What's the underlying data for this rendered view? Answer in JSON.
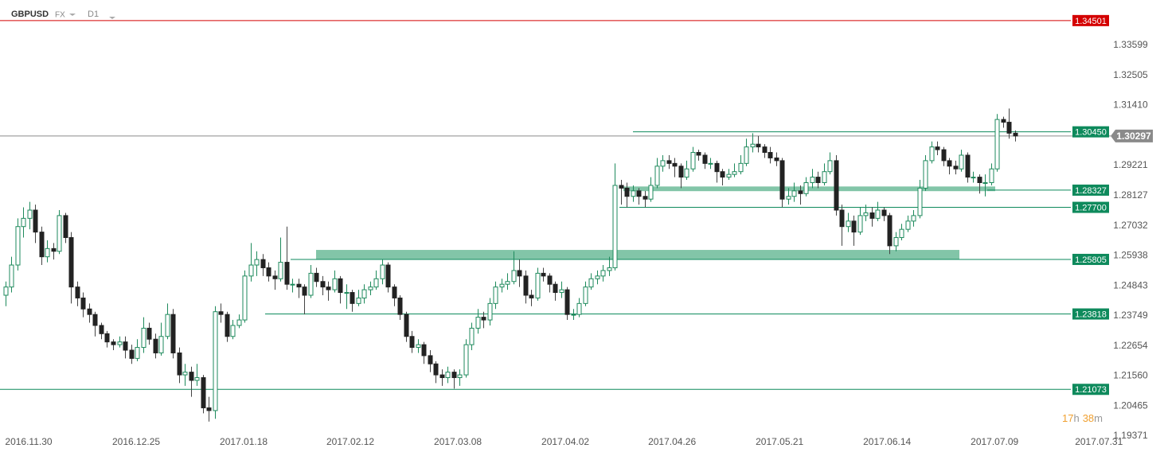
{
  "header": {
    "symbol": "GBPUSD",
    "market": "FX",
    "timeframe": "D1",
    "countdown": [
      "17",
      "h",
      "38",
      "m"
    ]
  },
  "chart_data": {
    "type": "candlestick",
    "up_color": "#ffffff",
    "up_border": "#1e8a5c",
    "down_color": "#222222",
    "wick_color": "#444444",
    "xlim": [
      -0.93,
      193.97
    ],
    "ylim": [
      1.19371,
      1.3525
    ],
    "yticks": [
      1.33599,
      1.32505,
      {
        "value": 1.3141,
        "label": "1.31410"
      },
      1.29221,
      1.28127,
      1.27032,
      1.25938,
      1.24843,
      1.23749,
      1.22654,
      {
        "value": 1.2156,
        "label": "1.21560"
      },
      1.20465,
      1.19371
    ],
    "xticks": [
      {
        "value": 3.87,
        "label": "2016.11.30"
      },
      {
        "value": 21.87,
        "label": "2016.12.25"
      },
      {
        "value": 39.87,
        "label": "2017.01.18"
      },
      {
        "value": 57.73,
        "label": "2017.02.12"
      },
      {
        "value": 75.73,
        "label": "2017.03.08"
      },
      {
        "value": 93.73,
        "label": "2017.04.02"
      },
      {
        "value": 111.6,
        "label": "2017.04.26"
      },
      {
        "value": 129.6,
        "label": "2017.05.21"
      },
      {
        "value": 147.6,
        "label": "2017.06.14"
      },
      {
        "value": 165.6,
        "label": "2017.07.09"
      },
      {
        "value": 183.07,
        "label": "2017.07.31"
      }
    ],
    "levels": [
      {
        "price": 1.34501,
        "color": "#d40000"
      },
      {
        "price": {
          "value": 1.3045,
          "label": "1.30450"
        },
        "color": "#0e8a5c"
      },
      {
        "price": 1.28327,
        "color": "#0e8a5c"
      },
      {
        "price": {
          "value": 1.277,
          "label": "1.27700"
        },
        "color": "#0e8a5c"
      },
      {
        "price": 1.25805,
        "color": "#0e8a5c"
      },
      {
        "price": 1.23818,
        "color": "#0e8a5c"
      },
      {
        "price": 1.21073,
        "color": "#0e8a5c"
      }
    ],
    "current_price": {
      "price": 1.30297,
      "color": "#8a8a8a"
    },
    "zones": [
      {
        "from": 1.2829,
        "to": 1.2846,
        "color": "#2e9e6e"
      },
      {
        "from": 1.258,
        "to": 1.2615,
        "color": "#2e9e6e"
      }
    ],
    "ohlc": [
      [
        1.245,
        1.25,
        1.241,
        1.248
      ],
      [
        1.248,
        1.259,
        1.246,
        1.256
      ],
      [
        1.256,
        1.273,
        1.254,
        1.27
      ],
      [
        1.27,
        1.277,
        1.266,
        1.273
      ],
      [
        1.273,
        1.279,
        1.269,
        1.276
      ],
      [
        1.276,
        1.278,
        1.264,
        1.268
      ],
      [
        1.268,
        1.27,
        1.256,
        1.259
      ],
      [
        1.259,
        1.265,
        1.257,
        1.262
      ],
      [
        1.262,
        1.264,
        1.258,
        1.261
      ],
      [
        1.261,
        1.276,
        1.26,
        1.274
      ],
      [
        1.274,
        1.275,
        1.264,
        1.266
      ],
      [
        1.266,
        1.268,
        1.242,
        1.248
      ],
      [
        1.248,
        1.25,
        1.241,
        1.244
      ],
      [
        1.244,
        1.246,
        1.237,
        1.24
      ],
      [
        1.24,
        1.242,
        1.235,
        1.238
      ],
      [
        1.238,
        1.239,
        1.23,
        1.234
      ],
      [
        1.234,
        1.235,
        1.229,
        1.231
      ],
      [
        1.231,
        1.232,
        1.226,
        1.228
      ],
      [
        1.228,
        1.229,
        1.225,
        1.227
      ],
      [
        1.227,
        1.23,
        1.226,
        1.228
      ],
      [
        1.228,
        1.23,
        1.222,
        1.225
      ],
      [
        1.225,
        1.227,
        1.22,
        1.222
      ],
      [
        1.222,
        1.229,
        1.221,
        1.226
      ],
      [
        1.226,
        1.237,
        1.224,
        1.233
      ],
      [
        1.233,
        1.235,
        1.227,
        1.229
      ],
      [
        1.229,
        1.231,
        1.222,
        1.224
      ],
      [
        1.224,
        1.235,
        1.223,
        1.23
      ],
      [
        1.23,
        1.242,
        1.229,
        1.238
      ],
      [
        1.238,
        1.24,
        1.222,
        1.224
      ],
      [
        1.224,
        1.226,
        1.213,
        1.216
      ],
      [
        1.216,
        1.22,
        1.212,
        1.217
      ],
      [
        1.217,
        1.219,
        1.208,
        1.214
      ],
      [
        1.214,
        1.22,
        1.212,
        1.215
      ],
      [
        1.215,
        1.216,
        1.202,
        1.204
      ],
      [
        1.204,
        1.208,
        1.199,
        1.203
      ],
      [
        1.203,
        1.241,
        1.2,
        1.239
      ],
      [
        1.239,
        1.242,
        1.235,
        1.238
      ],
      [
        1.238,
        1.239,
        1.228,
        1.23
      ],
      [
        1.23,
        1.236,
        1.229,
        1.234
      ],
      [
        1.234,
        1.238,
        1.233,
        1.236
      ],
      [
        1.236,
        1.254,
        1.235,
        1.252
      ],
      [
        1.252,
        1.264,
        1.25,
        1.256
      ],
      [
        1.256,
        1.261,
        1.252,
        1.258
      ],
      [
        1.258,
        1.26,
        1.252,
        1.255
      ],
      [
        1.255,
        1.257,
        1.25,
        1.252
      ],
      [
        1.252,
        1.254,
        1.247,
        1.251
      ],
      [
        1.251,
        1.266,
        1.25,
        1.257
      ],
      [
        1.257,
        1.27,
        1.247,
        1.249
      ],
      [
        1.249,
        1.251,
        1.246,
        1.249
      ],
      [
        1.249,
        1.251,
        1.244,
        1.248
      ],
      [
        1.248,
        1.249,
        1.238,
        1.245
      ],
      [
        1.245,
        1.256,
        1.244,
        1.253
      ],
      [
        1.253,
        1.255,
        1.248,
        1.25
      ],
      [
        1.25,
        1.252,
        1.245,
        1.248
      ],
      [
        1.248,
        1.25,
        1.243,
        1.247
      ],
      [
        1.247,
        1.254,
        1.246,
        1.251
      ],
      [
        1.251,
        1.252,
        1.242,
        1.246
      ],
      [
        1.246,
        1.249,
        1.24,
        1.246
      ],
      [
        1.246,
        1.247,
        1.239,
        1.242
      ],
      [
        1.242,
        1.247,
        1.241,
        1.244
      ],
      [
        1.244,
        1.249,
        1.242,
        1.247
      ],
      [
        1.247,
        1.25,
        1.245,
        1.248
      ],
      [
        1.248,
        1.254,
        1.247,
        1.251
      ],
      [
        1.251,
        1.258,
        1.249,
        1.256
      ],
      [
        1.256,
        1.257,
        1.246,
        1.248
      ],
      [
        1.248,
        1.249,
        1.241,
        1.244
      ],
      [
        1.244,
        1.245,
        1.236,
        1.238
      ],
      [
        1.238,
        1.239,
        1.228,
        1.23
      ],
      [
        1.23,
        1.232,
        1.224,
        1.226
      ],
      [
        1.226,
        1.229,
        1.224,
        1.227
      ],
      [
        1.227,
        1.228,
        1.22,
        1.223
      ],
      [
        1.223,
        1.225,
        1.217,
        1.22
      ],
      [
        1.22,
        1.221,
        1.213,
        1.216
      ],
      [
        1.216,
        1.218,
        1.212,
        1.215
      ],
      [
        1.215,
        1.219,
        1.213,
        1.217
      ],
      [
        1.217,
        1.218,
        1.211,
        1.215
      ],
      [
        1.215,
        1.218,
        1.212,
        1.216
      ],
      [
        1.216,
        1.229,
        1.215,
        1.227
      ],
      [
        1.227,
        1.235,
        1.225,
        1.233
      ],
      [
        1.233,
        1.24,
        1.231,
        1.237
      ],
      [
        1.237,
        1.239,
        1.233,
        1.236
      ],
      [
        1.236,
        1.244,
        1.234,
        1.242
      ],
      [
        1.242,
        1.25,
        1.24,
        1.248
      ],
      [
        1.248,
        1.251,
        1.246,
        1.249
      ],
      [
        1.249,
        1.253,
        1.247,
        1.25
      ],
      [
        1.25,
        1.261,
        1.249,
        1.254
      ],
      [
        1.254,
        1.258,
        1.248,
        1.252
      ],
      [
        1.252,
        1.254,
        1.242,
        1.245
      ],
      [
        1.245,
        1.247,
        1.241,
        1.244
      ],
      [
        1.244,
        1.255,
        1.243,
        1.253
      ],
      [
        1.253,
        1.255,
        1.25,
        1.252
      ],
      [
        1.252,
        1.253,
        1.246,
        1.249
      ],
      [
        1.249,
        1.25,
        1.243,
        1.246
      ],
      [
        1.246,
        1.25,
        1.244,
        1.247
      ],
      [
        1.247,
        1.248,
        1.236,
        1.238
      ],
      [
        1.238,
        1.24,
        1.236,
        1.238
      ],
      [
        1.238,
        1.244,
        1.237,
        1.242
      ],
      [
        1.242,
        1.25,
        1.241,
        1.248
      ],
      [
        1.248,
        1.253,
        1.247,
        1.251
      ],
      [
        1.251,
        1.254,
        1.249,
        1.252
      ],
      [
        1.252,
        1.256,
        1.25,
        1.254
      ],
      [
        1.254,
        1.259,
        1.252,
        1.255
      ],
      [
        1.255,
        1.293,
        1.254,
        1.285
      ],
      [
        1.285,
        1.287,
        1.278,
        1.284
      ],
      [
        1.284,
        1.286,
        1.277,
        1.281
      ],
      [
        1.281,
        1.285,
        1.279,
        1.283
      ],
      [
        1.283,
        1.284,
        1.278,
        1.281
      ],
      [
        1.281,
        1.283,
        1.277,
        1.28
      ],
      [
        1.28,
        1.288,
        1.279,
        1.285
      ],
      [
        1.285,
        1.295,
        1.284,
        1.292
      ],
      [
        1.292,
        1.296,
        1.29,
        1.294
      ],
      [
        1.294,
        1.296,
        1.291,
        1.293
      ],
      [
        1.293,
        1.295,
        1.288,
        1.292
      ],
      [
        1.292,
        1.293,
        1.284,
        1.288
      ],
      [
        1.288,
        1.294,
        1.287,
        1.291
      ],
      [
        1.291,
        1.299,
        1.29,
        1.297
      ],
      [
        1.297,
        1.298,
        1.294,
        1.296
      ],
      [
        1.296,
        1.297,
        1.291,
        1.293
      ],
      [
        1.293,
        1.295,
        1.291,
        1.293
      ],
      [
        1.293,
        1.294,
        1.286,
        1.29
      ],
      [
        1.29,
        1.291,
        1.285,
        1.288
      ],
      [
        1.288,
        1.291,
        1.287,
        1.289
      ],
      [
        1.289,
        1.293,
        1.288,
        1.29
      ],
      [
        1.29,
        1.296,
        1.289,
        1.293
      ],
      [
        1.293,
        1.302,
        1.292,
        1.299
      ],
      [
        1.299,
        1.304,
        1.297,
        1.3
      ],
      [
        1.3,
        1.303,
        1.297,
        1.299
      ],
      [
        1.299,
        1.3,
        1.295,
        1.297
      ],
      [
        1.297,
        1.299,
        1.293,
        1.295
      ],
      [
        1.295,
        1.297,
        1.292,
        1.294
      ],
      [
        1.294,
        1.295,
        1.277,
        1.28
      ],
      [
        1.28,
        1.284,
        1.278,
        1.281
      ],
      [
        1.281,
        1.286,
        1.279,
        1.283
      ],
      [
        1.283,
        1.285,
        1.278,
        1.282
      ],
      [
        1.282,
        1.288,
        1.281,
        1.286
      ],
      [
        1.286,
        1.291,
        1.284,
        1.288
      ],
      [
        1.288,
        1.29,
        1.284,
        1.286
      ],
      [
        1.286,
        1.293,
        1.285,
        1.29
      ],
      [
        1.29,
        1.297,
        1.289,
        1.294
      ],
      [
        1.294,
        1.296,
        1.274,
        1.276
      ],
      [
        1.276,
        1.278,
        1.263,
        1.27
      ],
      [
        1.27,
        1.275,
        1.268,
        1.272
      ],
      [
        1.272,
        1.274,
        1.263,
        1.268
      ],
      [
        1.268,
        1.277,
        1.267,
        1.274
      ],
      [
        1.274,
        1.278,
        1.272,
        1.275
      ],
      [
        1.275,
        1.277,
        1.27,
        1.273
      ],
      [
        1.273,
        1.279,
        1.272,
        1.276
      ],
      [
        1.276,
        1.277,
        1.272,
        1.274
      ],
      [
        1.274,
        1.275,
        1.26,
        1.263
      ],
      [
        1.263,
        1.268,
        1.261,
        1.266
      ],
      [
        1.266,
        1.271,
        1.265,
        1.269
      ],
      [
        1.269,
        1.274,
        1.268,
        1.272
      ],
      [
        1.272,
        1.276,
        1.27,
        1.274
      ],
      [
        1.274,
        1.287,
        1.273,
        1.284
      ],
      [
        1.284,
        1.296,
        1.283,
        1.294
      ],
      [
        1.294,
        1.301,
        1.293,
        1.299
      ],
      [
        1.299,
        1.301,
        1.296,
        1.298
      ],
      [
        1.298,
        1.299,
        1.292,
        1.294
      ],
      [
        1.294,
        1.295,
        1.289,
        1.292
      ],
      [
        1.292,
        1.294,
        1.289,
        1.291
      ],
      [
        1.291,
        1.298,
        1.29,
        1.296
      ],
      [
        1.296,
        1.297,
        1.286,
        1.288
      ],
      [
        1.288,
        1.29,
        1.286,
        1.288
      ],
      [
        1.288,
        1.289,
        1.282,
        1.286
      ],
      [
        1.286,
        1.289,
        1.281,
        1.286
      ],
      [
        1.286,
        1.293,
        1.285,
        1.291
      ],
      [
        1.291,
        1.311,
        1.29,
        1.309
      ],
      [
        1.309,
        1.31,
        1.306,
        1.308
      ],
      [
        1.308,
        1.313,
        1.302,
        1.304
      ],
      [
        1.304,
        1.305,
        1.301,
        1.303
      ]
    ]
  }
}
